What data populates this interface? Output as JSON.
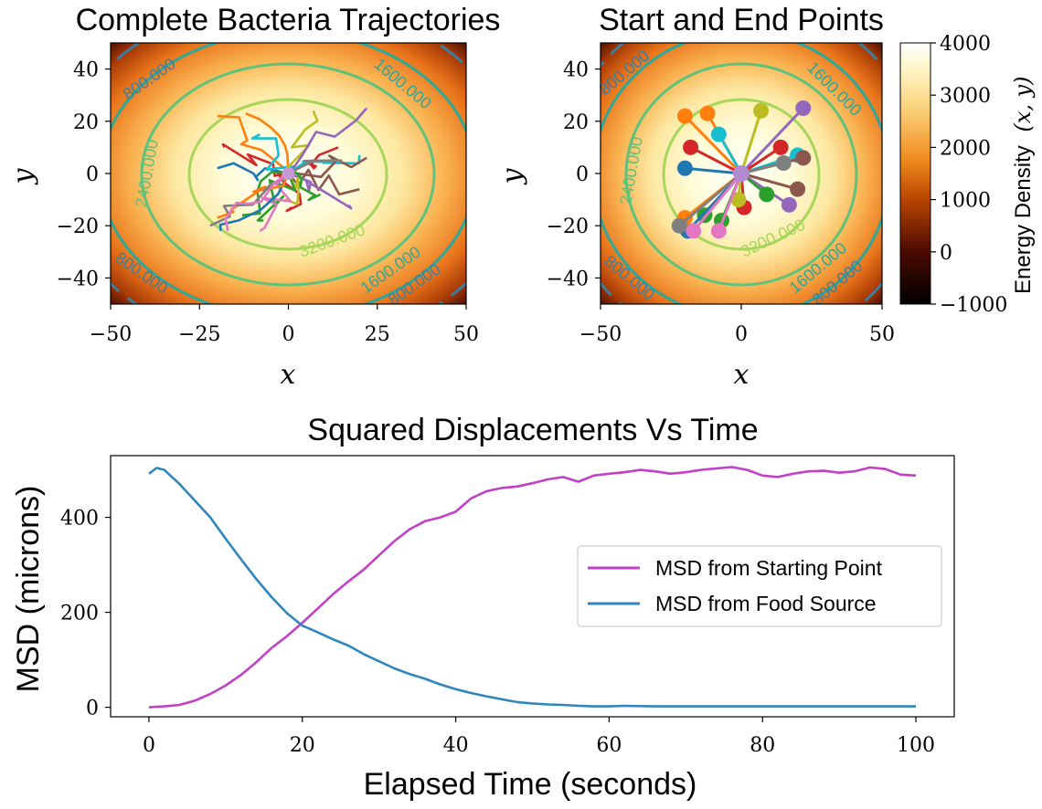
{
  "chart_data": [
    {
      "type": "heatmap",
      "title": "Complete Bacteria Trajectories",
      "xlabel": "x",
      "ylabel": "y",
      "xlim": [
        -50,
        50
      ],
      "ylim": [
        -50,
        50
      ],
      "xticks": [
        "−50",
        "−25",
        "0",
        "25",
        "50"
      ],
      "yticks": [
        "40",
        "20",
        "0",
        "−20",
        "−40"
      ],
      "contour_levels": [
        "800.000",
        "1600.000",
        "2400.000",
        "3200.000"
      ],
      "contour_labels": [
        "800.000",
        "1600.000",
        "2400.000",
        "3200.000",
        "1600.000",
        "800.000",
        "800.000"
      ]
    },
    {
      "type": "scatter",
      "title": "Start and End Points",
      "xlabel": "x",
      "ylabel": "y",
      "xlim": [
        -50,
        50
      ],
      "ylim": [
        -50,
        50
      ],
      "xticks": [
        "−50",
        "0",
        "50"
      ],
      "yticks": [
        "40",
        "20",
        "0",
        "−20",
        "−40"
      ],
      "colorbar": {
        "label": "Energy Density",
        "label_math": "(x, y)",
        "ticks": [
          "4000",
          "3000",
          "2000",
          "1000",
          "0",
          "−1000"
        ],
        "range": [
          -1000,
          4000
        ]
      },
      "center": [
        0,
        0
      ],
      "end_points": [
        {
          "color": "#ff7f0e",
          "x": -20,
          "y": 22
        },
        {
          "color": "#d62728",
          "x": -18,
          "y": 10
        },
        {
          "color": "#1f77b4",
          "x": -20,
          "y": 2
        },
        {
          "color": "#ff7f0e",
          "x": -12,
          "y": 23
        },
        {
          "color": "#17becf",
          "x": -8,
          "y": 15
        },
        {
          "color": "#bcbd22",
          "x": 7,
          "y": 24
        },
        {
          "color": "#9467bd",
          "x": 22,
          "y": 25
        },
        {
          "color": "#d62728",
          "x": 14,
          "y": 10
        },
        {
          "color": "#17becf",
          "x": 20,
          "y": 7
        },
        {
          "color": "#8c564b",
          "x": 22,
          "y": 6
        },
        {
          "color": "#8c564b",
          "x": 20,
          "y": -6
        },
        {
          "color": "#9467bd",
          "x": 17,
          "y": -12
        },
        {
          "color": "#2ca02c",
          "x": 9,
          "y": -8
        },
        {
          "color": "#d62728",
          "x": 1,
          "y": -13
        },
        {
          "color": "#bcbd22",
          "x": -1,
          "y": -10
        },
        {
          "color": "#2ca02c",
          "x": -7,
          "y": -18
        },
        {
          "color": "#e377c2",
          "x": -8,
          "y": -22
        },
        {
          "color": "#2ca02c",
          "x": -13,
          "y": -16
        },
        {
          "color": "#1f77b4",
          "x": -19,
          "y": -22
        },
        {
          "color": "#ff7f0e",
          "x": -20,
          "y": -17
        },
        {
          "color": "#7f7f7f",
          "x": -22,
          "y": -20
        },
        {
          "color": "#e377c2",
          "x": -17,
          "y": -22
        },
        {
          "color": "#7f7f7f",
          "x": 15,
          "y": 4
        }
      ]
    },
    {
      "type": "line",
      "title": "Squared Displacements Vs Time",
      "xlabel": "Elapsed Time (seconds)",
      "ylabel": "MSD (microns)",
      "xlim": [
        -5,
        105
      ],
      "ylim": [
        -20,
        530
      ],
      "xticks": [
        "0",
        "20",
        "40",
        "60",
        "80",
        "100"
      ],
      "yticks": [
        "0",
        "200",
        "400"
      ],
      "legend_position": "center-right",
      "series": [
        {
          "name": "MSD from Starting Point",
          "color": "#c23fc7",
          "x": [
            0,
            2,
            4,
            6,
            8,
            10,
            12,
            14,
            16,
            18,
            20,
            22,
            24,
            26,
            28,
            30,
            32,
            34,
            36,
            38,
            40,
            42,
            44,
            46,
            48,
            50,
            52,
            54,
            56,
            58,
            60,
            62,
            64,
            66,
            68,
            70,
            72,
            74,
            76,
            78,
            80,
            82,
            84,
            86,
            88,
            90,
            92,
            94,
            96,
            98,
            100
          ],
          "y": [
            0,
            2,
            5,
            14,
            28,
            46,
            68,
            95,
            125,
            150,
            178,
            208,
            238,
            265,
            290,
            320,
            350,
            375,
            392,
            400,
            412,
            440,
            455,
            462,
            465,
            472,
            480,
            485,
            475,
            488,
            492,
            495,
            500,
            497,
            492,
            495,
            500,
            503,
            506,
            500,
            488,
            485,
            492,
            497,
            498,
            494,
            497,
            505,
            502,
            490,
            488
          ]
        },
        {
          "name": "MSD from Food Source",
          "color": "#2f86bd",
          "x": [
            0,
            1,
            2,
            4,
            6,
            8,
            10,
            12,
            14,
            16,
            18,
            20,
            22,
            24,
            26,
            28,
            30,
            32,
            34,
            36,
            38,
            40,
            42,
            44,
            46,
            48,
            50,
            52,
            54,
            56,
            58,
            60,
            62,
            66,
            70,
            75,
            80,
            85,
            90,
            95,
            100
          ],
          "y": [
            492,
            504,
            500,
            470,
            435,
            400,
            355,
            312,
            270,
            232,
            198,
            172,
            158,
            143,
            130,
            112,
            97,
            82,
            70,
            60,
            48,
            38,
            30,
            23,
            17,
            11,
            8,
            6,
            5,
            3,
            2,
            2,
            3,
            2,
            2,
            2,
            2,
            2,
            2,
            2,
            2
          ]
        }
      ]
    }
  ]
}
